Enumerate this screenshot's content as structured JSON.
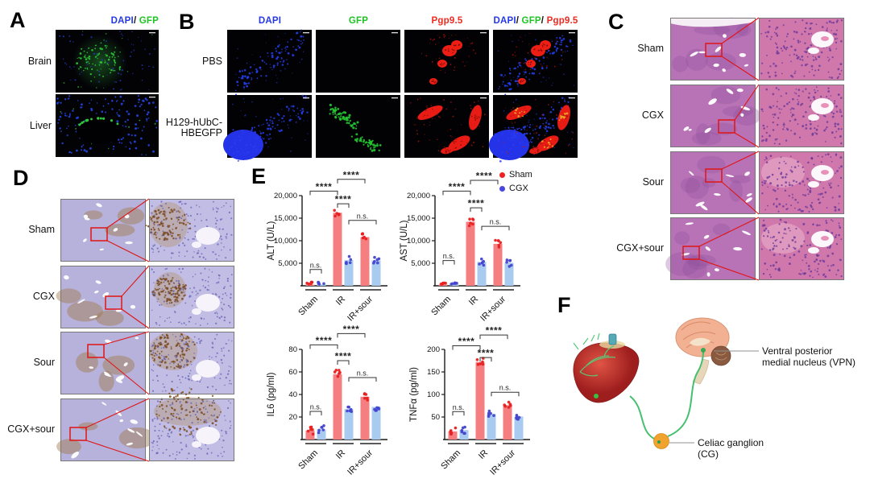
{
  "panels": {
    "A": {
      "label": "A",
      "header_parts": [
        {
          "text": "DAPI",
          "color": "#2438e8"
        },
        {
          "text": "/",
          "color": "#111111"
        },
        {
          "text": " GFP",
          "color": "#1ec423"
        }
      ],
      "rows": [
        {
          "label": "Brain",
          "type": "brain"
        },
        {
          "label": "Liver",
          "type": "liver"
        }
      ]
    },
    "B": {
      "label": "B",
      "column_headers": [
        [
          {
            "text": "DAPI",
            "color": "#2438e8"
          }
        ],
        [
          {
            "text": "GFP",
            "color": "#1ec423"
          }
        ],
        [
          {
            "text": "Pgp9.5",
            "color": "#ee2a20"
          }
        ],
        [
          {
            "text": "DAPI",
            "color": "#2438e8"
          },
          {
            "text": "/",
            "color": "#111111"
          },
          {
            "text": " GFP",
            "color": "#1ec423"
          },
          {
            "text": "/",
            "color": "#111111"
          },
          {
            "text": " Pgp9.5",
            "color": "#ee2a20"
          }
        ]
      ],
      "rows": [
        {
          "label": "PBS",
          "label_lines": [
            "PBS"
          ]
        },
        {
          "label": "H129-hUbC-HBEGFP",
          "label_lines": [
            "H129-hUbC-",
            "HBEGFP"
          ]
        }
      ]
    },
    "C": {
      "label": "C",
      "stain": "H&E",
      "rows": [
        {
          "label": "Sham"
        },
        {
          "label": "CGX"
        },
        {
          "label": "Sour"
        },
        {
          "label": "CGX+sour"
        }
      ]
    },
    "D": {
      "label": "D",
      "stain": "IHC",
      "rows": [
        {
          "label": "Sham"
        },
        {
          "label": "CGX"
        },
        {
          "label": "Sour"
        },
        {
          "label": "CGX+sour"
        }
      ]
    },
    "E": {
      "label": "E",
      "legend": [
        {
          "label": "Sham",
          "dot_color": "#ee2222"
        },
        {
          "label": "CGX",
          "dot_color": "#4747e0"
        }
      ]
    },
    "F": {
      "label": "F",
      "annotations": [
        {
          "id": "vpn",
          "lines": [
            "Ventral posterior",
            "medial nucleus (VPN)"
          ]
        },
        {
          "id": "cg",
          "lines": [
            "Celiac ganglion",
            "(CG)"
          ]
        }
      ]
    }
  },
  "chart_data": [
    {
      "type": "bar",
      "title": "",
      "xlabel": "",
      "ylabel": "ALT (U/L)",
      "categories": [
        "Sham",
        "IR",
        "IR+sour"
      ],
      "series": [
        {
          "name": "Sham",
          "values": [
            250,
            16200,
            10800
          ]
        },
        {
          "name": "CGX",
          "values": [
            300,
            5700,
            5600
          ]
        }
      ],
      "ylim": [
        0,
        20000
      ],
      "yticks": [
        {
          "value": 5000,
          "label": "5,000"
        },
        {
          "value": 10000,
          "label": "10,000"
        },
        {
          "value": 15000,
          "label": "15,000"
        },
        {
          "value": 20000,
          "label": "20,000"
        }
      ],
      "legend_position": "top-right-of-panel",
      "grid": false,
      "significance": [
        {
          "bars": [
            0,
            1
          ],
          "level": 3600,
          "label": "n.s."
        },
        {
          "bars": [
            0,
            2
          ],
          "level": 21000,
          "label": "****"
        },
        {
          "bars": [
            2,
            4
          ],
          "level": 23600,
          "label": "****"
        },
        {
          "bars": [
            2,
            3
          ],
          "level": 18200,
          "label": "****"
        },
        {
          "bars": [
            3,
            5
          ],
          "level": 14500,
          "label": "n.s."
        }
      ]
    },
    {
      "type": "bar",
      "title": "",
      "xlabel": "",
      "ylabel": "AST (U/L)",
      "categories": [
        "Sham",
        "IR",
        "IR+sour"
      ],
      "series": [
        {
          "name": "Sham",
          "values": [
            250,
            14200,
            9300
          ]
        },
        {
          "name": "CGX",
          "values": [
            300,
            5300,
            5100
          ]
        }
      ],
      "ylim": [
        0,
        20000
      ],
      "yticks": [
        {
          "value": 5000,
          "label": "5,000"
        },
        {
          "value": 10000,
          "label": "10,000"
        },
        {
          "value": 15000,
          "label": "15,000"
        },
        {
          "value": 20000,
          "label": "20,000"
        }
      ],
      "grid": false,
      "significance": [
        {
          "bars": [
            0,
            1
          ],
          "level": 5600,
          "label": "n.s."
        },
        {
          "bars": [
            0,
            2
          ],
          "level": 21000,
          "label": "****"
        },
        {
          "bars": [
            2,
            4
          ],
          "level": 23400,
          "label": "****"
        },
        {
          "bars": [
            2,
            3
          ],
          "level": 17300,
          "label": "****"
        },
        {
          "bars": [
            3,
            5
          ],
          "level": 13200,
          "label": "n.s."
        }
      ]
    },
    {
      "type": "bar",
      "title": "",
      "xlabel": "",
      "ylabel": "IL6 (pg/ml)",
      "categories": [
        "Sham",
        "IR",
        "IR+sour"
      ],
      "series": [
        {
          "name": "Sham",
          "values": [
            8,
            58,
            38
          ]
        },
        {
          "name": "CGX",
          "values": [
            9,
            27,
            29
          ]
        }
      ],
      "ylim": [
        0,
        80
      ],
      "yticks": [
        {
          "value": 20,
          "label": "20"
        },
        {
          "value": 40,
          "label": "40"
        },
        {
          "value": 60,
          "label": "60"
        },
        {
          "value": 80,
          "label": "80"
        }
      ],
      "grid": false,
      "significance": [
        {
          "bars": [
            0,
            1
          ],
          "level": 25,
          "label": "n.s."
        },
        {
          "bars": [
            0,
            2
          ],
          "level": 84,
          "label": "****"
        },
        {
          "bars": [
            2,
            4
          ],
          "level": 94,
          "label": "****"
        },
        {
          "bars": [
            2,
            3
          ],
          "level": 70,
          "label": "****"
        },
        {
          "bars": [
            3,
            5
          ],
          "level": 55,
          "label": "n.s."
        }
      ]
    },
    {
      "type": "bar",
      "title": "",
      "xlabel": "",
      "ylabel": "TNFα (pg/ml)",
      "categories": [
        "Sham",
        "IR",
        "IR+sour"
      ],
      "series": [
        {
          "name": "Sham",
          "values": [
            18,
            172,
            76
          ]
        },
        {
          "name": "CGX",
          "values": [
            21,
            57,
            51
          ]
        }
      ],
      "ylim": [
        0,
        200
      ],
      "yticks": [
        {
          "value": 50,
          "label": "50"
        },
        {
          "value": 100,
          "label": "100"
        },
        {
          "value": 150,
          "label": "150"
        },
        {
          "value": 200,
          "label": "200"
        }
      ],
      "grid": false,
      "significance": [
        {
          "bars": [
            0,
            1
          ],
          "level": 62,
          "label": "n.s."
        },
        {
          "bars": [
            0,
            2
          ],
          "level": 208,
          "label": "****"
        },
        {
          "bars": [
            2,
            4
          ],
          "level": 232,
          "label": "****"
        },
        {
          "bars": [
            2,
            3
          ],
          "level": 182,
          "label": "****"
        },
        {
          "bars": [
            3,
            5
          ],
          "level": 105,
          "label": "n.s."
        }
      ]
    }
  ],
  "colors": {
    "sham_bar": "#f47e80",
    "sham_dot": "#e82020",
    "cgx_bar": "#a9cbf0",
    "cgx_dot": "#4444cf",
    "axis": "#1a1a1a",
    "bracket": "#333333",
    "dapi_blue": "#2438e8",
    "gfp_green": "#1ec423",
    "pgp_red": "#ee2a20",
    "he_base": "#b873b6",
    "he_zoom": "#d078ac",
    "ihc_base": "#b6b2db",
    "ihc_zoom": "#c2bde4",
    "zoom_rect_red": "#e01515",
    "nerve_green": "#46c06e",
    "ganglion_orange": "#f0a32e"
  }
}
